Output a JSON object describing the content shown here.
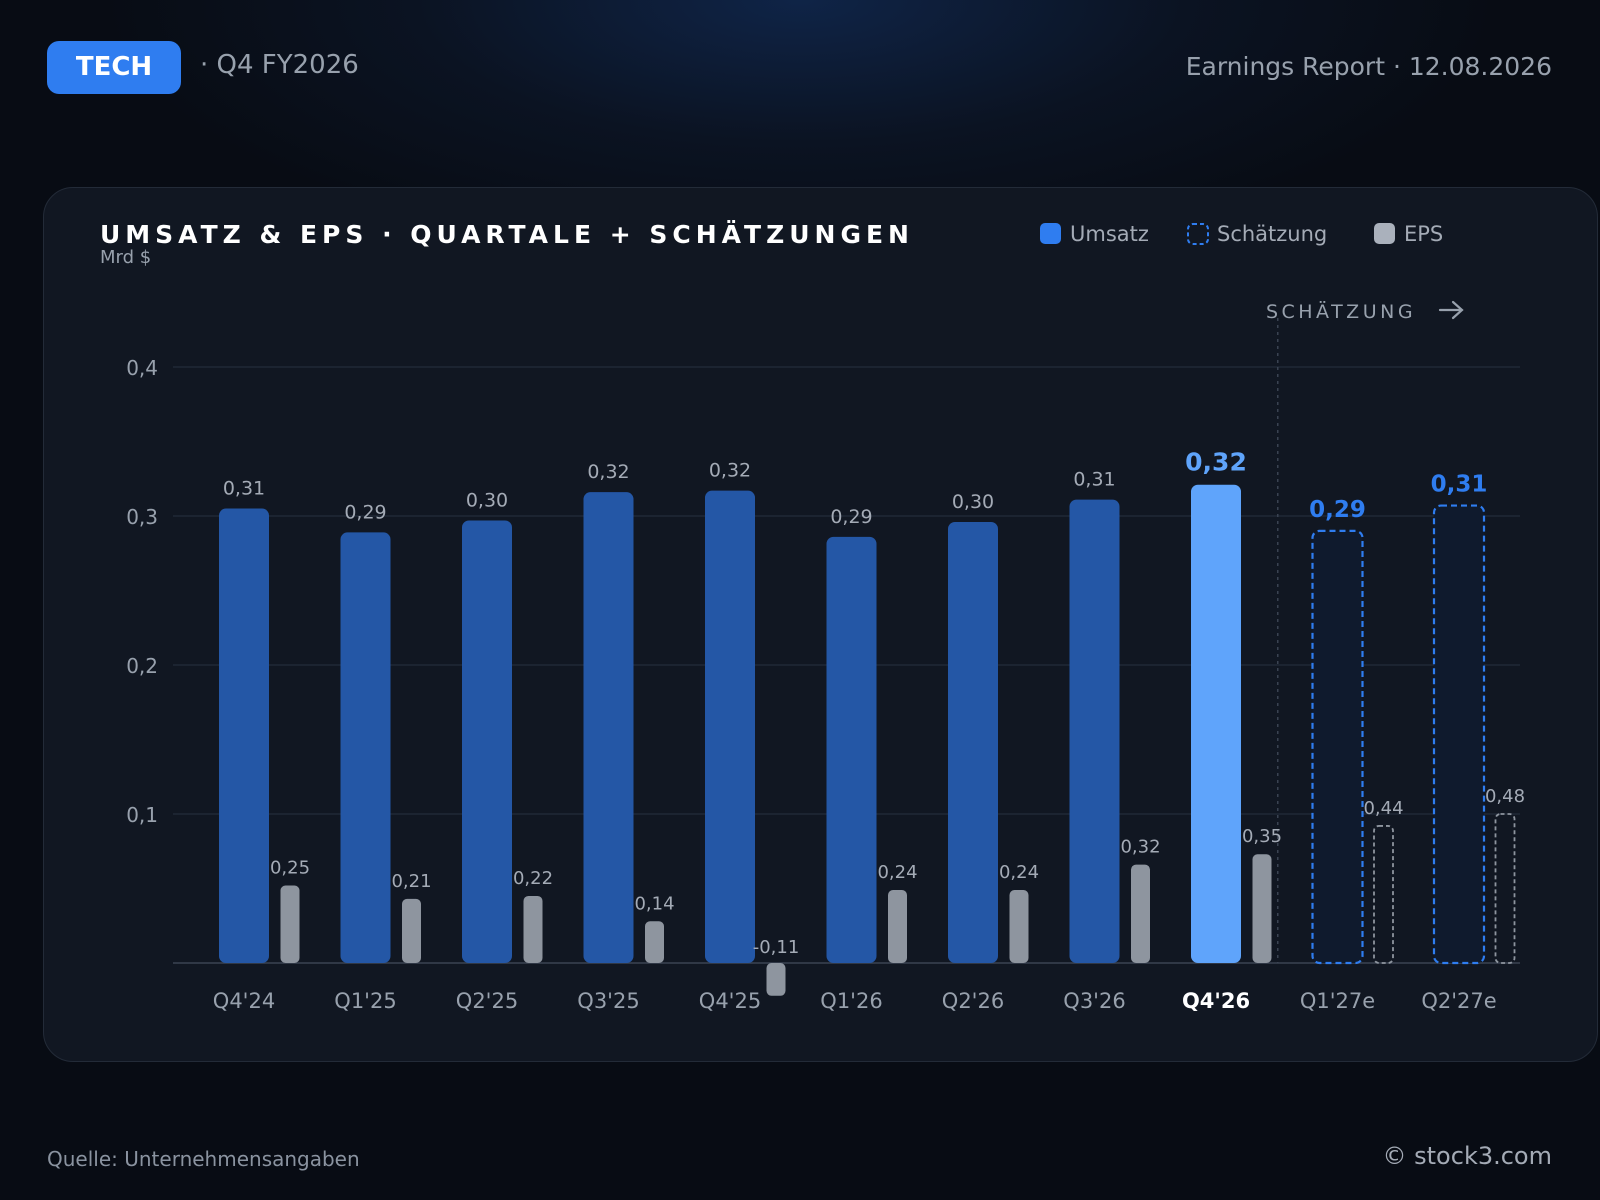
{
  "header": {
    "badge": "TECH",
    "subtitle": "· Q4 FY2026",
    "right": "Earnings Report · 12.08.2026"
  },
  "footer": {
    "source": "Quelle: Unternehmensangaben",
    "copyright": "© stock3.com"
  },
  "colors": {
    "revenue": "#2457a6",
    "revenue_highlight": "#5fa4fb",
    "estimate": "#2f7df0",
    "eps": "#8e959f",
    "eps_estimate": "#8e959f"
  },
  "chart_data": {
    "type": "bar",
    "title": "UMSATZ & EPS · QUARTALE + SCHÄTZUNGEN",
    "ylabel": "Mrd $",
    "ylim": [
      0,
      0.4
    ],
    "yticks": [
      "0,1",
      "0,2",
      "0,3",
      "0,4"
    ],
    "ytick_values": [
      0.1,
      0.2,
      0.3,
      0.4
    ],
    "grid": true,
    "legend_position": "top-right",
    "legend": [
      "Umsatz",
      "Schätzung",
      "EPS"
    ],
    "estimate_marker": "SCHÄTZUNG",
    "categories": [
      "Q4'24",
      "Q1'25",
      "Q2'25",
      "Q3'25",
      "Q4'25",
      "Q1'26",
      "Q2'26",
      "Q3'26",
      "Q4'26",
      "Q1'27e",
      "Q2'27e"
    ],
    "highlight": "Q4'26",
    "estimate_categories": [
      "Q1'27e",
      "Q2'27e"
    ],
    "series": [
      {
        "name": "Umsatz",
        "values": [
          0.305,
          0.289,
          0.297,
          0.316,
          0.317,
          0.286,
          0.296,
          0.311,
          0.321,
          0.29,
          0.307
        ],
        "labels": [
          "0,31",
          "0,29",
          "0,30",
          "0,32",
          "0,32",
          "0,29",
          "0,30",
          "0,31",
          "0,32",
          "0,29",
          "0,31"
        ]
      },
      {
        "name": "EPS",
        "values": [
          0.052,
          0.043,
          0.045,
          0.028,
          -0.022,
          0.049,
          0.049,
          0.066,
          0.073,
          0.092,
          0.1
        ],
        "labels": [
          "0,25",
          "0,21",
          "0,22",
          "0,14",
          "-0,11",
          "0,24",
          "0,24",
          "0,32",
          "0,35",
          "0,44",
          "0,48"
        ]
      }
    ]
  }
}
